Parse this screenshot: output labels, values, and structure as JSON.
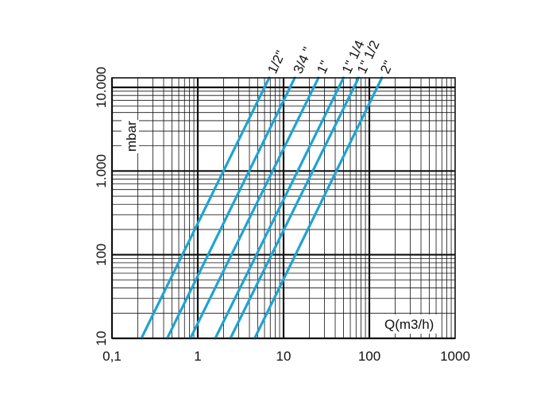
{
  "chart_data": {
    "type": "line",
    "title": "",
    "xlabel": "Q(m3/h)",
    "ylabel": "mbar",
    "x_scale": "log",
    "y_scale": "log",
    "xlim": [
      0.1,
      1000
    ],
    "ylim": [
      10,
      13000
    ],
    "x_ticks": [
      {
        "value": 0.1,
        "label": "0,1"
      },
      {
        "value": 1,
        "label": "1"
      },
      {
        "value": 10,
        "label": "10"
      },
      {
        "value": 100,
        "label": "100"
      },
      {
        "value": 1000,
        "label": "1000"
      }
    ],
    "y_ticks": [
      {
        "value": 10,
        "label": "10"
      },
      {
        "value": 100,
        "label": "100"
      },
      {
        "value": 1000,
        "label": "1.000"
      },
      {
        "value": 10000,
        "label": "10.000"
      }
    ],
    "grid": true,
    "line_color": "#1fa3d4",
    "series": [
      {
        "name": "1/2\"",
        "x": [
          0.22,
          6.8
        ],
        "y": [
          10,
          13000
        ]
      },
      {
        "name": "3/4 \"",
        "x": [
          0.44,
          13.5
        ],
        "y": [
          10,
          13000
        ]
      },
      {
        "name": "1\"",
        "x": [
          0.82,
          25.5
        ],
        "y": [
          10,
          13000
        ]
      },
      {
        "name": "1\" 1/4",
        "x": [
          1.6,
          50
        ],
        "y": [
          10,
          13000
        ]
      },
      {
        "name": "1\" 1/2",
        "x": [
          2.4,
          75
        ],
        "y": [
          10,
          13000
        ]
      },
      {
        "name": "2\"",
        "x": [
          4.6,
          140
        ],
        "y": [
          10,
          13000
        ]
      }
    ]
  }
}
